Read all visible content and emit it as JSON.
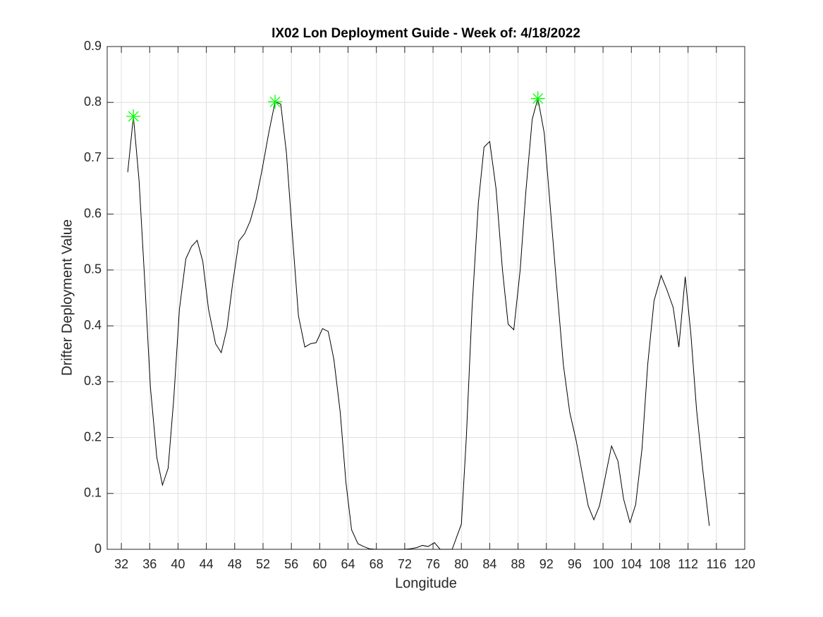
{
  "chart_data": {
    "type": "line",
    "title": "IX02 Lon Deployment Guide - Week of: 4/18/2022",
    "x_label": "Longitude",
    "y_label": "Drifter Deployment Value",
    "xlim": [
      30,
      120
    ],
    "ylim": [
      0,
      0.9
    ],
    "xticks": [
      32,
      36,
      40,
      44,
      48,
      52,
      56,
      60,
      64,
      68,
      72,
      76,
      80,
      84,
      88,
      92,
      96,
      100,
      104,
      108,
      112,
      116,
      120
    ],
    "yticks": [
      0,
      0.1,
      0.2,
      0.3,
      0.4,
      0.5,
      0.6,
      0.7,
      0.8,
      0.9
    ],
    "grid": true,
    "series": [
      {
        "color": "#000000",
        "x": [
          32.9,
          33.7,
          34.5,
          35.3,
          36.1,
          37.0,
          37.8,
          38.6,
          39.4,
          40.2,
          41.1,
          41.9,
          42.7,
          43.5,
          44.3,
          45.3,
          46.1,
          46.9,
          47.7,
          48.6,
          49.4,
          50.2,
          51.0,
          51.8,
          52.8,
          53.7,
          54.5,
          55.3,
          56.1,
          57.0,
          57.9,
          58.7,
          59.5,
          60.4,
          61.2,
          62.0,
          62.9,
          63.7,
          64.5,
          65.4,
          66.2,
          67.0,
          67.9,
          68.7,
          69.5,
          70.4,
          71.2,
          72.0,
          72.8,
          73.7,
          74.5,
          75.3,
          76.2,
          77.0,
          77.8,
          78.7,
          80.0,
          80.7,
          81.5,
          82.4,
          83.2,
          84.0,
          84.9,
          85.8,
          86.6,
          87.4,
          88.3,
          89.1,
          90.0,
          90.8,
          91.7,
          92.5,
          93.4,
          94.4,
          95.3,
          96.2,
          97.0,
          97.9,
          98.7,
          99.5,
          100.4,
          101.2,
          102.1,
          102.9,
          103.8,
          104.6,
          105.5,
          106.3,
          107.2,
          108.2,
          109.0,
          109.9,
          110.7,
          111.6,
          112.4,
          113.2,
          114.1,
          115.0
        ],
        "values": [
          0.675,
          0.775,
          0.66,
          0.48,
          0.29,
          0.165,
          0.115,
          0.145,
          0.27,
          0.43,
          0.52,
          0.542,
          0.553,
          0.515,
          0.43,
          0.368,
          0.352,
          0.395,
          0.475,
          0.552,
          0.565,
          0.588,
          0.625,
          0.675,
          0.745,
          0.801,
          0.797,
          0.71,
          0.57,
          0.418,
          0.362,
          0.368,
          0.37,
          0.395,
          0.39,
          0.34,
          0.245,
          0.12,
          0.035,
          0.01,
          0.005,
          0.001,
          0,
          0,
          0,
          0,
          0,
          0,
          0.001,
          0.003,
          0.007,
          0.005,
          0.012,
          0,
          0,
          0,
          0.045,
          0.2,
          0.43,
          0.62,
          0.72,
          0.73,
          0.645,
          0.5,
          0.403,
          0.393,
          0.5,
          0.64,
          0.77,
          0.807,
          0.745,
          0.62,
          0.48,
          0.33,
          0.245,
          0.195,
          0.14,
          0.078,
          0.053,
          0.078,
          0.135,
          0.185,
          0.158,
          0.09,
          0.048,
          0.08,
          0.18,
          0.33,
          0.445,
          0.49,
          0.465,
          0.433,
          0.362,
          0.488,
          0.385,
          0.25,
          0.14,
          0.042
        ]
      },
      {
        "color": "#00ff00",
        "marker": "star",
        "x": [
          33.7,
          53.7,
          90.8
        ],
        "values": [
          0.775,
          0.801,
          0.807
        ]
      }
    ]
  }
}
